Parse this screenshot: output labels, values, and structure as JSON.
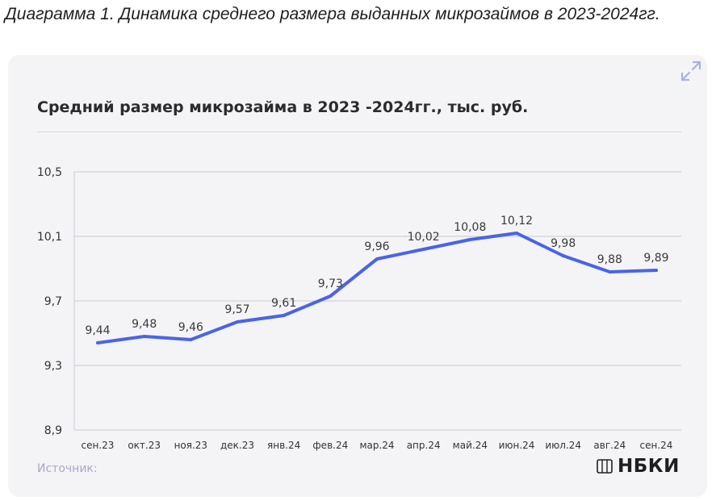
{
  "caption": "Диаграмма 1. Динамика среднего размера выданных микрозаймов в 2023-2024гг.",
  "card": {
    "expand_icon": "expand-arrows-icon",
    "source_label": "Источник:",
    "logo_icon": "nbki-logo-icon",
    "logo_text": "НБКИ"
  },
  "colors": {
    "line": "#4a63e7",
    "card_bg": "#f4f4f7",
    "grid": "#c9c9d2",
    "source_text": "#a8a8c4"
  },
  "chart_data": {
    "type": "line",
    "title": "Средний размер микрозайма в 2023 -2024гг., тыс. руб.",
    "xlabel": "",
    "ylabel": "",
    "categories": [
      "сен.23",
      "окт.23",
      "ноя.23",
      "дек.23",
      "янв.24",
      "фев.24",
      "мар.24",
      "апр.24",
      "май.24",
      "июн.24",
      "июл.24",
      "авг.24",
      "сен.24"
    ],
    "series": [
      {
        "values": [
          9.44,
          9.48,
          9.46,
          9.57,
          9.61,
          9.73,
          9.96,
          10.02,
          10.08,
          10.12,
          9.98,
          9.88,
          9.89
        ],
        "labels": [
          "9,44",
          "9,48",
          "9,46",
          "9,57",
          "9,61",
          "9,73",
          "9,96",
          "10,02",
          "10,08",
          "10,12",
          "9,98",
          "9,88",
          "9,89"
        ]
      }
    ],
    "y_ticks": [
      8.9,
      9.3,
      9.7,
      10.1,
      10.5
    ],
    "y_tick_labels": [
      "8,9",
      "9,3",
      "9,7",
      "10,1",
      "10,5"
    ],
    "ylim": [
      8.9,
      10.5
    ],
    "grid": true,
    "legend": "none"
  }
}
